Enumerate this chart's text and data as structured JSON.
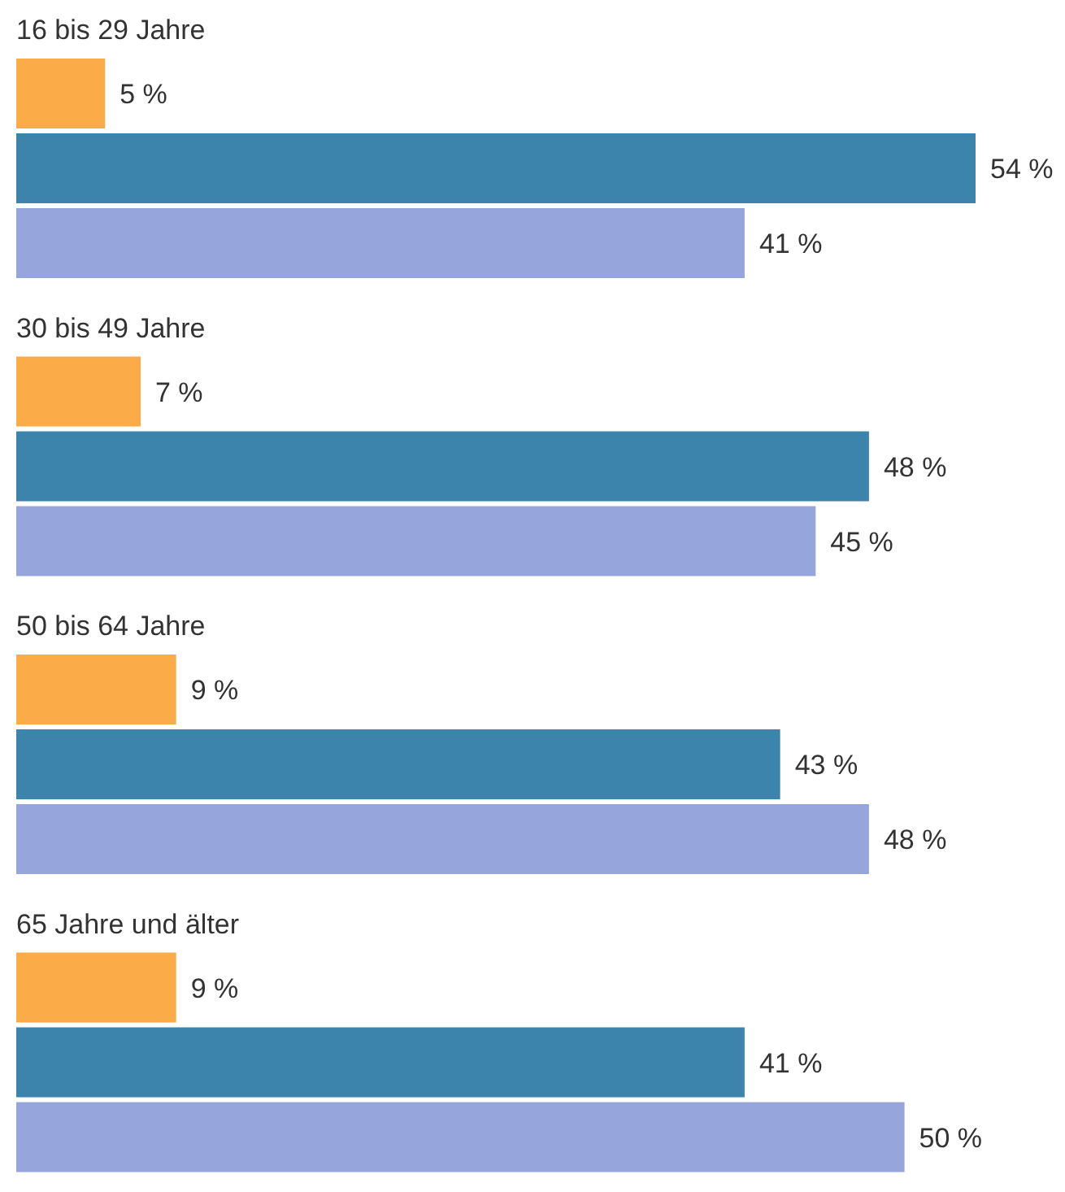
{
  "chart_data": {
    "type": "bar",
    "orientation": "horizontal",
    "categories": [
      "16 bis 29 Jahre",
      "30 bis 49 Jahre",
      "50 bis 64 Jahre",
      "65 Jahre und älter"
    ],
    "series": [
      {
        "color": "#fbab48",
        "values": [
          5,
          7,
          9,
          9
        ],
        "value_labels": [
          "5 %",
          "7 %",
          "9 %",
          "9 %"
        ]
      },
      {
        "color": "#3d84ad",
        "values": [
          54,
          48,
          43,
          41
        ],
        "value_labels": [
          "54 %",
          "48 %",
          "43 %",
          "41 %"
        ]
      },
      {
        "color": "#96a6dc",
        "values": [
          41,
          45,
          48,
          50
        ],
        "value_labels": [
          "41 %",
          "45 %",
          "48 %",
          "50 %"
        ]
      }
    ]
  }
}
